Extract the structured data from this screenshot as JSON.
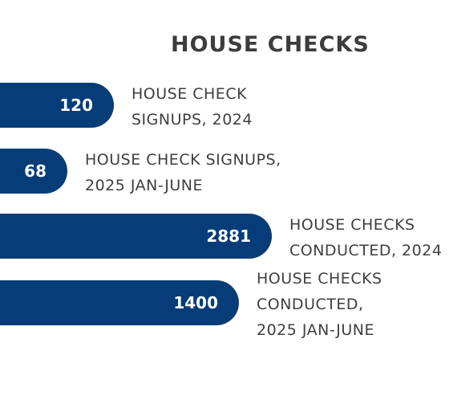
{
  "chart_data": {
    "type": "bar",
    "orientation": "horizontal",
    "title": "HOUSE CHECKS",
    "xlabel": "",
    "ylabel": "",
    "grid": false,
    "categories": [
      "HOUSE CHECK SIGNUPS, 2024",
      "HOUSE CHECK SIGNUPS, 2025 JAN-JUNE",
      "HOUSE CHECKS CONDUCTED, 2024",
      "HOUSE CHECKS CONDUCTED, 2025 JAN-JUNE"
    ],
    "category_lines": [
      [
        "HOUSE CHECK",
        "SIGNUPS, 2024"
      ],
      [
        "HOUSE CHECK SIGNUPS,",
        "2025 JAN-JUNE"
      ],
      [
        "HOUSE CHECKS",
        "CONDUCTED, 2024"
      ],
      [
        "HOUSE CHECKS",
        "CONDUCTED,",
        "2025 JAN-JUNE"
      ]
    ],
    "values": [
      120,
      68,
      2881,
      1400
    ],
    "value_labels": [
      "120",
      "68",
      "2881",
      "1400"
    ],
    "bar_color": "#063d78",
    "label_color": "#3f3f3f",
    "value_label_color": "#ffffff"
  }
}
